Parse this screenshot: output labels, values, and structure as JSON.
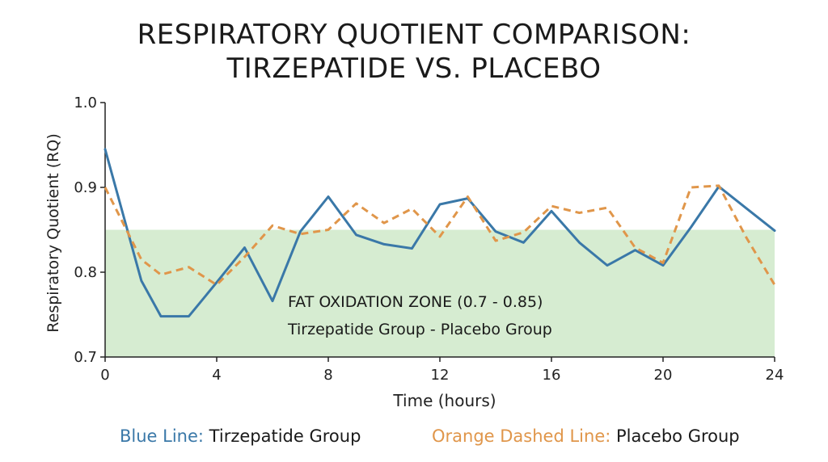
{
  "chart_data": {
    "type": "line",
    "title": [
      "RESPIRATORY QUOTIENT COMPARISON:",
      "TIRZEPATIDE VS. PLACEBO"
    ],
    "xlabel": "Time (hours)",
    "ylabel": "Respiratory Quotient (RQ)",
    "xlim": [
      0,
      24
    ],
    "ylim": [
      0.7,
      1.0
    ],
    "xticks": [
      0,
      4,
      8,
      12,
      16,
      20,
      24
    ],
    "yticks": [
      "0.7",
      "0.8",
      "0.9",
      "1.0"
    ],
    "zone": {
      "range": [
        0.7,
        0.85
      ],
      "color": "#d6ecd1",
      "label1": "FAT OXIDATION ZONE (0.7 - 0.85)",
      "label2": "Tirzepatide Group - Placebo Group"
    },
    "series": [
      {
        "color": "#3a78a8",
        "dashed": false,
        "x": [
          0,
          1.3,
          2,
          3,
          4,
          5,
          6,
          7,
          8,
          9,
          10,
          11,
          12,
          13,
          14,
          15,
          16,
          17,
          18,
          19,
          20,
          21,
          22,
          23,
          24
        ],
        "y": [
          0.945,
          0.79,
          0.748,
          0.748,
          0.788,
          0.829,
          0.766,
          0.848,
          0.889,
          0.844,
          0.833,
          0.828,
          0.88,
          0.887,
          0.848,
          0.835,
          0.872,
          0.835,
          0.808,
          0.826,
          0.808,
          0.853,
          0.901,
          0.875,
          0.849
        ]
      },
      {
        "color": "#e0964a",
        "dashed": true,
        "x": [
          0,
          1.3,
          2,
          3,
          4,
          5,
          6,
          7,
          8,
          9,
          10,
          11,
          12,
          13,
          14,
          15,
          16,
          17,
          18,
          19,
          20,
          21,
          22,
          23,
          24
        ],
        "y": [
          0.9,
          0.815,
          0.797,
          0.806,
          0.785,
          0.818,
          0.855,
          0.845,
          0.85,
          0.881,
          0.858,
          0.875,
          0.842,
          0.889,
          0.837,
          0.847,
          0.878,
          0.87,
          0.876,
          0.829,
          0.811,
          0.9,
          0.902,
          0.84,
          0.785
        ]
      }
    ]
  },
  "legend": {
    "blue_key": "Blue Line:",
    "blue_label": " Tirzepatide Group",
    "orange_key": "Orange Dashed Line:",
    "orange_label": " Placebo Group"
  }
}
